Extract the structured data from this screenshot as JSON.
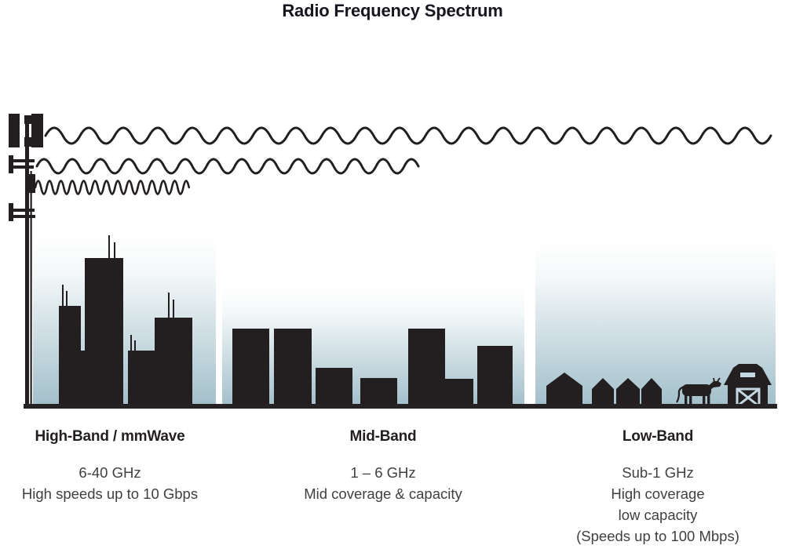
{
  "title": "Radio Frequency Spectrum",
  "colors": {
    "ink": "#231f20",
    "sky_gradient_top": "#ffffff",
    "sky_gradient_bottom": "#a2bfca",
    "body_text": "#404040",
    "title_text": "#16161e",
    "barn_trim": "#c3d8e0"
  },
  "bands": [
    {
      "id": "high-band",
      "label": "High-Band / mmWave",
      "lines": [
        "6-40 GHz",
        "High speeds up to 10 Gbps"
      ],
      "scene": "city-skyline",
      "wave": "high-frequency-short-range"
    },
    {
      "id": "mid-band",
      "label": "Mid-Band",
      "lines": [
        "1 – 6 GHz",
        "Mid coverage & capacity"
      ],
      "scene": "mid-rise-buildings",
      "wave": "mid-frequency-mid-range"
    },
    {
      "id": "low-band",
      "label": "Low-Band",
      "lines": [
        "Sub-1 GHz",
        "High coverage",
        "low capacity",
        "(Speeds up to 100 Mbps)"
      ],
      "scene": "rural-houses-farm",
      "wave": "low-frequency-long-range"
    }
  ]
}
